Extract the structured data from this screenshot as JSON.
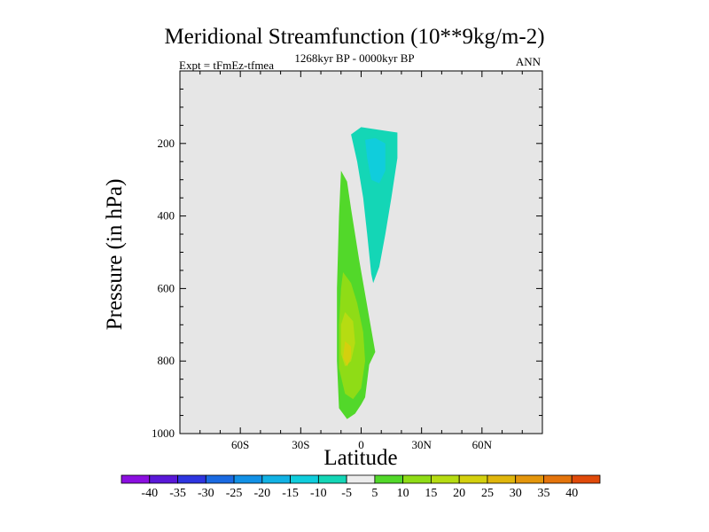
{
  "chart_data": {
    "type": "contour",
    "title": "Meridional Streamfunction (10**9kg/m-2)",
    "subtitle_left": "Expt = tFmEz-tfmea",
    "subtitle_center": "1268kyr BP - 0000kyr BP",
    "subtitle_right": "ANN",
    "xlabel": "Latitude",
    "ylabel": "Pressure (in hPa)",
    "xlim": [
      -90,
      90
    ],
    "ylim": [
      1000,
      0
    ],
    "x_ticks": [
      {
        "value": -60,
        "label": "60S"
      },
      {
        "value": -30,
        "label": "30S"
      },
      {
        "value": 0,
        "label": "0"
      },
      {
        "value": 30,
        "label": "30N"
      },
      {
        "value": 60,
        "label": "60N"
      }
    ],
    "y_ticks": [
      {
        "value": 200,
        "label": "200"
      },
      {
        "value": 400,
        "label": "400"
      },
      {
        "value": 600,
        "label": "600"
      },
      {
        "value": 800,
        "label": "800"
      },
      {
        "value": 1000,
        "label": "1000"
      }
    ],
    "background_color": "#e6e6e6",
    "colorbar": {
      "labels": [
        "-40",
        "-35",
        "-30",
        "-25",
        "-20",
        "-15",
        "-10",
        "-5",
        "5",
        "10",
        "15",
        "20",
        "25",
        "30",
        "35",
        "40"
      ],
      "colors": [
        "#8b0fe0",
        "#5a18d8",
        "#2e35e0",
        "#1a6ae2",
        "#1291e6",
        "#12b2e4",
        "#10cddc",
        "#14d6b6",
        "#ececec",
        "#52d82a",
        "#8fdc16",
        "#b6dc12",
        "#d4d00e",
        "#e0b60c",
        "#e4960c",
        "#e4740c",
        "#e04a0a"
      ]
    },
    "regions": [
      {
        "level_min": -10,
        "level_max": -5,
        "lat_pts": [
          -5,
          0,
          12,
          18,
          18,
          15,
          12,
          9,
          6,
          5,
          3,
          1,
          -2,
          -4
        ],
        "p_pts": [
          175,
          155,
          165,
          170,
          240,
          350,
          450,
          540,
          585,
          560,
          450,
          350,
          250,
          200
        ]
      },
      {
        "level_min": -15,
        "level_max": -10,
        "lat_pts": [
          2,
          7,
          12,
          12,
          9,
          5,
          3
        ],
        "p_pts": [
          190,
          185,
          200,
          275,
          310,
          300,
          240
        ]
      },
      {
        "level_min": 5,
        "level_max": 10,
        "lat_pts": [
          -10,
          -7,
          -5,
          -1,
          4,
          7,
          4,
          2,
          0,
          -3,
          -7,
          -11,
          -12,
          -12,
          -11
        ],
        "p_pts": [
          275,
          305,
          380,
          520,
          680,
          775,
          810,
          900,
          920,
          945,
          960,
          930,
          800,
          600,
          400
        ]
      },
      {
        "level_min": 10,
        "level_max": 15,
        "lat_pts": [
          -9,
          -5,
          -2,
          1,
          2,
          0,
          -4,
          -8,
          -11,
          -11,
          -10
        ],
        "p_pts": [
          555,
          585,
          640,
          720,
          800,
          875,
          905,
          890,
          820,
          700,
          600
        ]
      },
      {
        "level_min": 15,
        "level_max": 20,
        "lat_pts": [
          -8,
          -4,
          -3,
          -5,
          -8,
          -10,
          -10
        ],
        "p_pts": [
          665,
          690,
          750,
          800,
          815,
          780,
          700
        ]
      },
      {
        "level_min": 20,
        "level_max": 25,
        "lat_pts": [
          -8,
          -5,
          -5,
          -7,
          -9
        ],
        "p_pts": [
          745,
          760,
          790,
          815,
          790
        ]
      }
    ]
  }
}
